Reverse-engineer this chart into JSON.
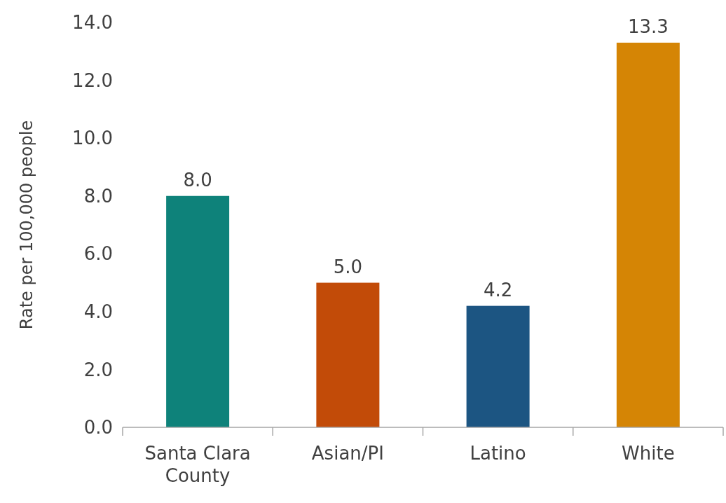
{
  "chart_data": {
    "type": "bar",
    "ylabel": "Rate per 100,000 people",
    "categories": [
      "Santa Clara County",
      "Asian/PI",
      "Latino",
      "White"
    ],
    "values": [
      8.0,
      5.0,
      4.2,
      13.3
    ],
    "colors": [
      "#0e827a",
      "#c24b08",
      "#1c5582",
      "#d58505"
    ],
    "ylim": [
      0,
      14
    ],
    "yticks": [
      {
        "value": 0,
        "label": "0.0"
      },
      {
        "value": 2,
        "label": "2.0"
      },
      {
        "value": 4,
        "label": "4.0"
      },
      {
        "value": 6,
        "label": "6.0"
      },
      {
        "value": 8,
        "label": "8.0"
      },
      {
        "value": 10,
        "label": "10.0"
      },
      {
        "value": 12,
        "label": "12.0"
      },
      {
        "value": 14,
        "label": "14.0"
      }
    ],
    "value_labels": [
      "8.0",
      "5.0",
      "4.2",
      "13.3"
    ]
  }
}
